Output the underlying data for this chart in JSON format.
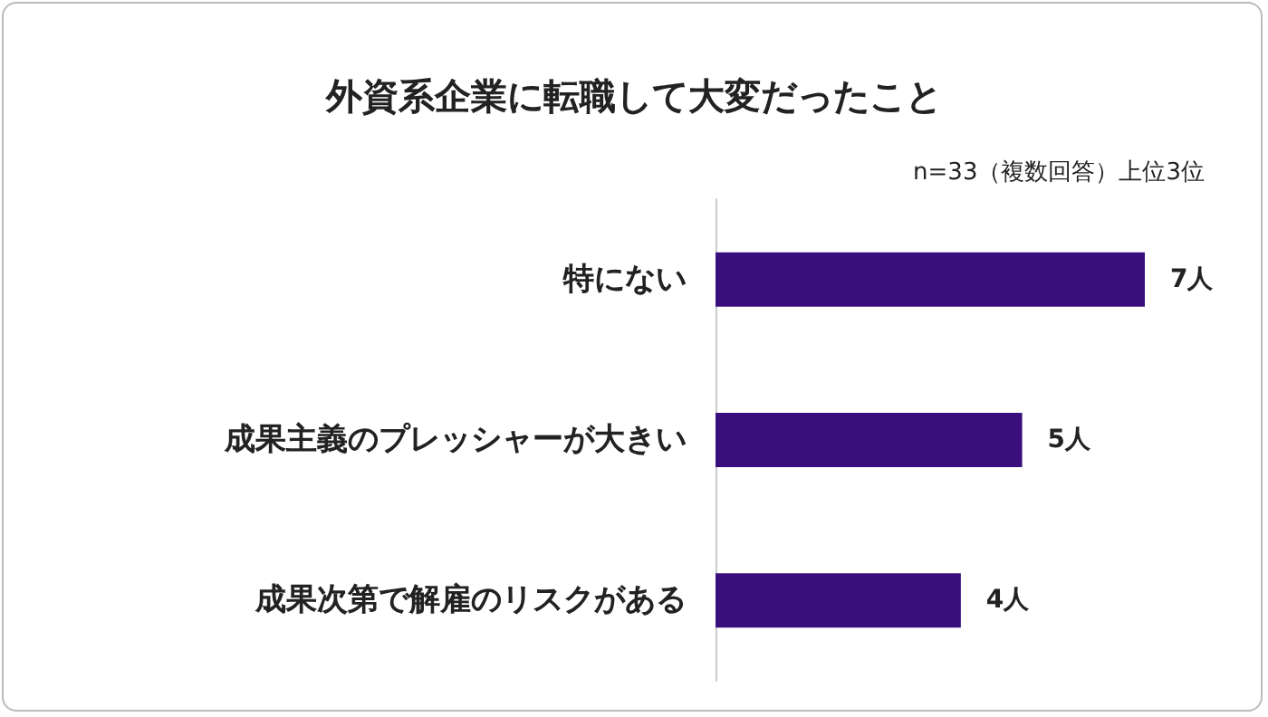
{
  "chart_data": {
    "type": "bar",
    "orientation": "horizontal",
    "title": "外資系企業に転職して大変だったこと",
    "subtitle": "n=33（複数回答）上位3位",
    "categories": [
      "特にない",
      "成果主義のプレッシャーが大きい",
      "成果次第で解雇のリスクがある"
    ],
    "values": [
      7,
      5,
      4
    ],
    "value_labels": [
      "7人",
      "5人",
      "4人"
    ],
    "color": "#3a0f7d",
    "tick_labels": "y",
    "grid": false
  }
}
